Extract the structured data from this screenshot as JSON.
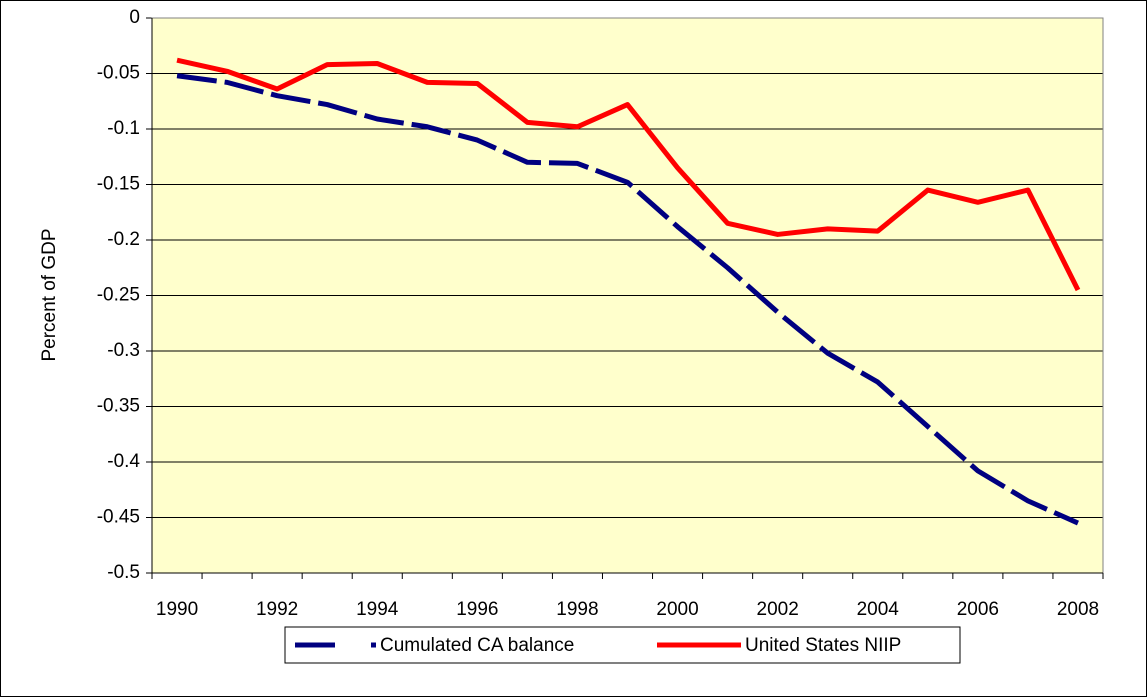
{
  "chart_data": {
    "type": "line",
    "categories": [
      "1990",
      null,
      "1992",
      null,
      "1994",
      null,
      "1996",
      null,
      "1998",
      null,
      "2000",
      null,
      "2002",
      null,
      "2004",
      null,
      "2006",
      null,
      "2008"
    ],
    "series": [
      {
        "name": "Cumulated CA balance",
        "color": "#000080",
        "dashed": true,
        "values": [
          -0.052,
          -0.058,
          -0.07,
          -0.078,
          -0.091,
          -0.098,
          -0.11,
          -0.13,
          -0.131,
          -0.148,
          -0.188,
          -0.225,
          -0.265,
          -0.302,
          -0.328,
          -0.368,
          -0.408,
          -0.435,
          -0.455
        ]
      },
      {
        "name": "United States NIIP",
        "color": "#ff0000",
        "dashed": false,
        "values": [
          -0.038,
          -0.048,
          -0.064,
          -0.042,
          -0.041,
          -0.058,
          -0.059,
          -0.094,
          -0.098,
          -0.078,
          -0.135,
          -0.185,
          -0.195,
          -0.19,
          -0.192,
          -0.155,
          -0.166,
          -0.155,
          -0.245
        ]
      }
    ],
    "y_label": "Percent of GDP",
    "ylim": [
      -0.5,
      0
    ],
    "yticks": [
      0,
      -0.05,
      -0.1,
      -0.15,
      -0.2,
      -0.25,
      -0.3,
      -0.35,
      -0.4,
      -0.45,
      -0.5
    ],
    "grid": true,
    "legend": "bottom",
    "background": "#ffffcc"
  }
}
